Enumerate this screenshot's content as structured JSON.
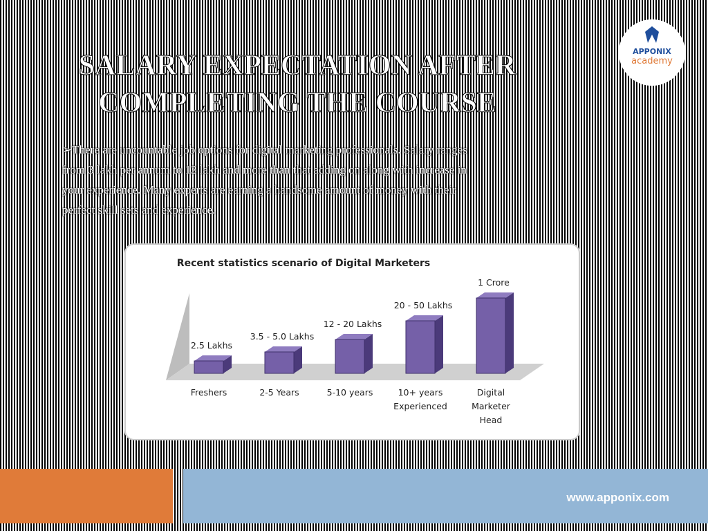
{
  "header": {
    "title": "SALARY EXPECTATION AFTER COMPLETING THE COURSE"
  },
  "logo": {
    "name": "APPONIX",
    "tagline": "academy"
  },
  "body": {
    "paragraph": "➢There are uncountable job options for digital marketing professionals. Salary ranges from 3 lakh per annum to 12 lakh and more than that adding on along with increase in your experience. Many experts are earning a handsome amount of money with their perfect skill sets and experience."
  },
  "figure": {
    "title": "Recent statistics scenario of Digital Marketers",
    "columns": [
      {
        "label": "2.5 Lakhs",
        "category": [
          "Freshers"
        ]
      },
      {
        "label": "3.5 - 5.0 Lakhs",
        "category": [
          "2-5 Years"
        ]
      },
      {
        "label": "12 - 20 Lakhs",
        "category": [
          "5-10 years"
        ]
      },
      {
        "label": "20 - 50 Lakhs",
        "category": [
          "10+ years",
          "Experienced"
        ]
      },
      {
        "label": "1 Crore",
        "category": [
          "Digital",
          "Marketer",
          "Head"
        ]
      }
    ]
  },
  "footer": {
    "url": "www.apponix.com"
  }
}
